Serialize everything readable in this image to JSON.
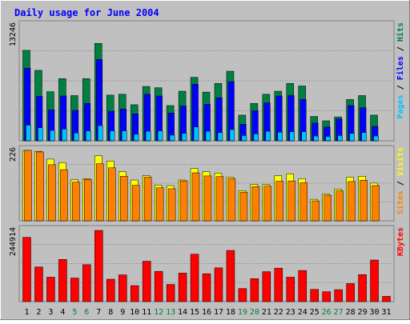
{
  "chart_data": {
    "type": "bar",
    "title": "Daily usage for June 2004",
    "categories": [
      "1",
      "2",
      "3",
      "4",
      "5",
      "6",
      "7",
      "8",
      "9",
      "10",
      "11",
      "12",
      "13",
      "14",
      "15",
      "16",
      "17",
      "18",
      "19",
      "20",
      "21",
      "22",
      "23",
      "24",
      "25",
      "26",
      "27",
      "28",
      "29",
      "30",
      "31"
    ],
    "weekend_days": [
      "5",
      "6",
      "12",
      "13",
      "19",
      "20",
      "26",
      "27"
    ],
    "panels": [
      {
        "id": "hits-files-pages",
        "ymax_label": "13246",
        "ylim": [
          0,
          13246
        ],
        "legend": [
          "Pages",
          "Files",
          "Hits"
        ],
        "series": [
          {
            "name": "Hits",
            "color": "#008040",
            "values": [
              10400,
              8100,
              5650,
              7150,
              5200,
              7150,
              11200,
              5250,
              5350,
              4150,
              6250,
              6100,
              4050,
              5700,
              7300,
              5600,
              6600,
              8000,
              2950,
              4300,
              5350,
              5700,
              6600,
              6300,
              2800,
              2300,
              2750,
              4750,
              5200,
              2950,
              0
            ]
          },
          {
            "name": "Files",
            "color": "#0000ff",
            "values": [
              8350,
              5100,
              3550,
              5150,
              3500,
              4300,
              9350,
              3400,
              3650,
              3100,
              5350,
              5150,
              3200,
              4000,
              6500,
              4200,
              4950,
              6800,
              1900,
              3450,
              4350,
              5150,
              5200,
              4750,
              2050,
              1600,
              2500,
              4050,
              3800,
              1650,
              0
            ]
          },
          {
            "name": "Pages",
            "color": "#00c0ff",
            "values": [
              1800,
              1500,
              1200,
              1350,
              900,
              1150,
              1750,
              1150,
              1150,
              750,
              1100,
              1150,
              650,
              850,
              1600,
              1100,
              950,
              1300,
              600,
              800,
              1100,
              1000,
              1050,
              1050,
              550,
              500,
              600,
              850,
              950,
              550,
              0
            ]
          }
        ]
      },
      {
        "id": "visits-sites",
        "ymax_label": "226",
        "ylim": [
          0,
          226
        ],
        "legend": [
          "Sites",
          "Visits"
        ],
        "series": [
          {
            "name": "Visits",
            "color": "#ffff00",
            "values": [
              226,
              223,
              198,
              187,
              132,
              135,
              209,
              192,
              158,
              131,
              145,
              115,
              113,
              131,
              168,
              158,
              153,
              140,
              97,
              117,
              116,
              145,
              151,
              135,
              69,
              86,
              102,
              140,
              143,
              121,
              0
            ]
          },
          {
            "name": "Sites",
            "color": "#ff8000",
            "values": [
              226,
              221,
              180,
              164,
              124,
              133,
              183,
              170,
              143,
              114,
              140,
              106,
              103,
              128,
              154,
              144,
              142,
              135,
              92,
              110,
              111,
              127,
              128,
              122,
              64,
              82,
              96,
              126,
              130,
              113,
              0
            ]
          }
        ]
      },
      {
        "id": "kbytes",
        "ymax_label": "244914",
        "ylim": [
          0,
          244914
        ],
        "legend": [
          "KBytes"
        ],
        "series": [
          {
            "name": "KBytes",
            "color": "#ff0000",
            "values": [
              221000,
              119000,
              84000,
              145000,
              81000,
              127000,
              244914,
              77000,
              92000,
              55000,
              139000,
              104000,
              59000,
              98000,
              163000,
              96000,
              116000,
              176000,
              45000,
              79000,
              103000,
              115000,
              84000,
              107000,
              42000,
              34000,
              41000,
              62000,
              93000,
              143000,
              18000
            ]
          }
        ]
      }
    ]
  },
  "colors": {
    "background": "#c0c0c0",
    "title": "#0000ff",
    "day_label": "#000000",
    "weekend_label": "#008040",
    "pages_label": "#00c0ff",
    "files_label": "#0000ff",
    "hits_label": "#008040",
    "sites_label": "#ff8000",
    "visits_label": "#ffff00",
    "kbytes_label": "#ff0000",
    "separator": "#000000"
  }
}
